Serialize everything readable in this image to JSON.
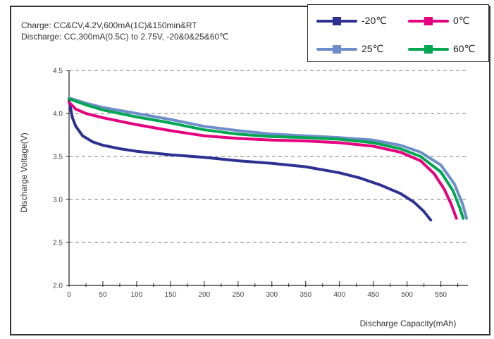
{
  "notes": {
    "charge": "Charge: CC&CV,4.2V,600mA(1C)&150min&RT",
    "discharge": "Discharge: CC,300mA(0.5C) to 2.75V, -20&0&25&60℃"
  },
  "chart_data": {
    "type": "line",
    "xlabel": "Discharge Capacity(mAh)",
    "ylabel": "Discharge Voltage(V)",
    "xlim": [
      0,
      590
    ],
    "ylim": [
      2.0,
      4.5
    ],
    "xticks": [
      0,
      50,
      100,
      150,
      200,
      250,
      300,
      350,
      400,
      450,
      500,
      550
    ],
    "yticks": [
      2.0,
      2.5,
      3.0,
      3.5,
      4.0,
      4.5
    ],
    "ytick_labels": [
      "2.0",
      "2.5",
      "3.0",
      "3.5",
      "4.0",
      "4.5"
    ],
    "grid": "horizontal dashed",
    "legend_position": "top-right",
    "series": [
      {
        "name": "-20℃",
        "color": "#2e3192",
        "points": [
          [
            0,
            4.15
          ],
          [
            5,
            3.95
          ],
          [
            10,
            3.85
          ],
          [
            20,
            3.74
          ],
          [
            35,
            3.67
          ],
          [
            50,
            3.63
          ],
          [
            75,
            3.59
          ],
          [
            100,
            3.56
          ],
          [
            150,
            3.52
          ],
          [
            200,
            3.49
          ],
          [
            250,
            3.45
          ],
          [
            300,
            3.42
          ],
          [
            350,
            3.38
          ],
          [
            400,
            3.31
          ],
          [
            430,
            3.25
          ],
          [
            460,
            3.17
          ],
          [
            490,
            3.07
          ],
          [
            510,
            2.97
          ],
          [
            525,
            2.86
          ],
          [
            535,
            2.76
          ]
        ]
      },
      {
        "name": "0℃",
        "color": "#e6007e",
        "points": [
          [
            0,
            4.13
          ],
          [
            10,
            4.05
          ],
          [
            25,
            4.0
          ],
          [
            50,
            3.95
          ],
          [
            100,
            3.87
          ],
          [
            150,
            3.8
          ],
          [
            200,
            3.74
          ],
          [
            250,
            3.71
          ],
          [
            300,
            3.69
          ],
          [
            350,
            3.68
          ],
          [
            400,
            3.66
          ],
          [
            450,
            3.62
          ],
          [
            490,
            3.55
          ],
          [
            520,
            3.45
          ],
          [
            540,
            3.3
          ],
          [
            555,
            3.12
          ],
          [
            565,
            2.95
          ],
          [
            573,
            2.78
          ]
        ]
      },
      {
        "name": "25℃",
        "color": "#6d8ec9",
        "points": [
          [
            0,
            4.18
          ],
          [
            25,
            4.12
          ],
          [
            50,
            4.07
          ],
          [
            100,
            4.0
          ],
          [
            150,
            3.93
          ],
          [
            200,
            3.85
          ],
          [
            250,
            3.8
          ],
          [
            300,
            3.76
          ],
          [
            350,
            3.74
          ],
          [
            400,
            3.72
          ],
          [
            450,
            3.69
          ],
          [
            490,
            3.63
          ],
          [
            520,
            3.55
          ],
          [
            550,
            3.4
          ],
          [
            570,
            3.18
          ],
          [
            582,
            2.95
          ],
          [
            588,
            2.78
          ]
        ]
      },
      {
        "name": "60℃",
        "color": "#00a651",
        "points": [
          [
            0,
            4.17
          ],
          [
            25,
            4.1
          ],
          [
            50,
            4.04
          ],
          [
            100,
            3.96
          ],
          [
            150,
            3.89
          ],
          [
            200,
            3.81
          ],
          [
            250,
            3.76
          ],
          [
            300,
            3.73
          ],
          [
            350,
            3.72
          ],
          [
            400,
            3.7
          ],
          [
            450,
            3.66
          ],
          [
            490,
            3.59
          ],
          [
            520,
            3.5
          ],
          [
            550,
            3.32
          ],
          [
            568,
            3.1
          ],
          [
            578,
            2.9
          ],
          [
            583,
            2.78
          ]
        ]
      }
    ]
  }
}
